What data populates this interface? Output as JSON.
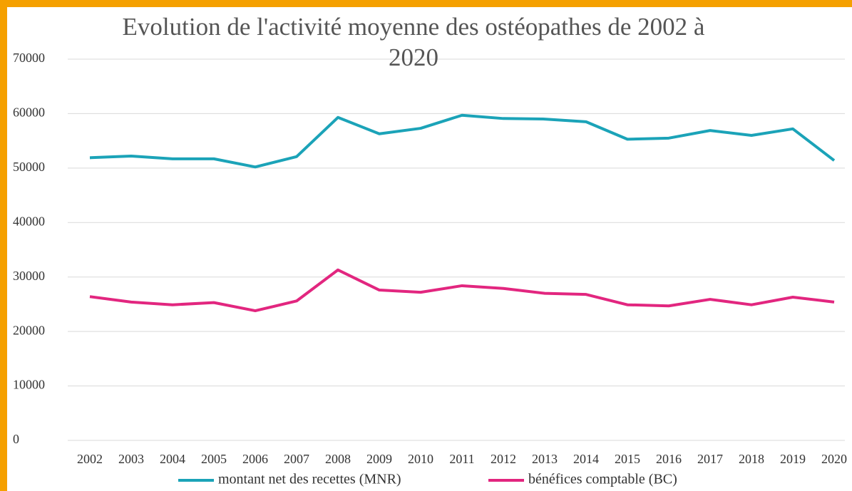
{
  "chart_data": {
    "type": "line",
    "title": "Evolution de l'activité moyenne des ostéopathes de 2002 à 2020",
    "categories": [
      "2002",
      "2003",
      "2004",
      "2005",
      "2006",
      "2007",
      "2008",
      "2009",
      "2010",
      "2011",
      "2012",
      "2013",
      "2014",
      "2015",
      "2016",
      "2017",
      "2018",
      "2019",
      "2020"
    ],
    "series": [
      {
        "name": "montant net des recettes (MNR)",
        "color": "#1ba3b8",
        "values": [
          51900,
          52200,
          51700,
          51700,
          50200,
          52100,
          59300,
          56300,
          57300,
          59700,
          59100,
          59000,
          58500,
          55300,
          55500,
          56900,
          56000,
          57200,
          51400
        ]
      },
      {
        "name": "bénéfices comptable (BC)",
        "color": "#e2267f",
        "values": [
          26400,
          25400,
          24900,
          25300,
          23800,
          25600,
          31300,
          27600,
          27200,
          28400,
          27900,
          27000,
          26800,
          24900,
          24700,
          25900,
          24900,
          26300,
          25400
        ]
      }
    ],
    "ylim": [
      0,
      70000
    ],
    "yticks": [
      0,
      10000,
      20000,
      30000,
      40000,
      50000,
      60000,
      70000
    ],
    "grid": true,
    "legend": "bottom"
  }
}
